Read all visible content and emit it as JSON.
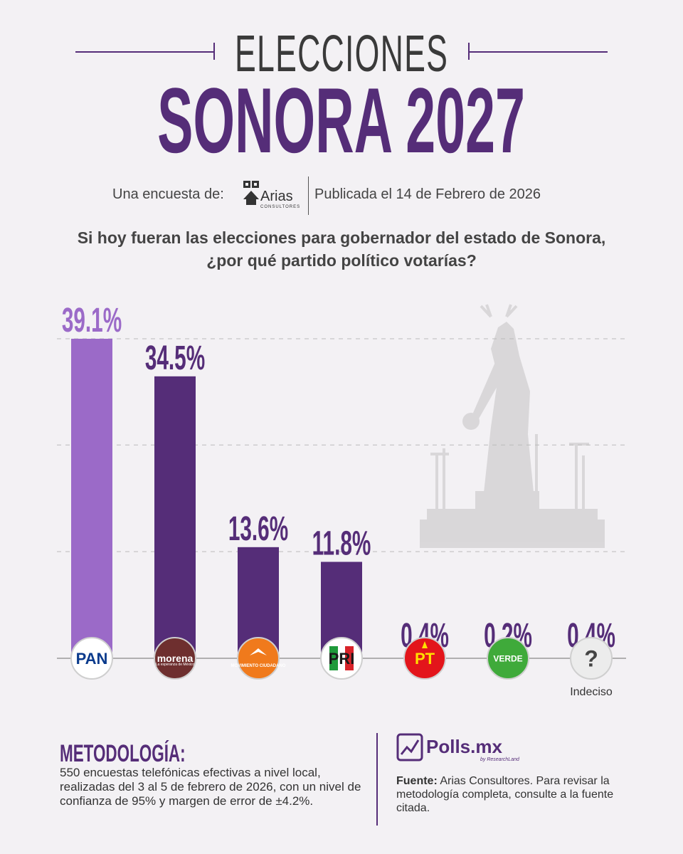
{
  "header": {
    "title_top": "ELECCIONES",
    "title_main": "SONORA 2027",
    "byline_label": "Una encuesta de:",
    "pollster_logo_name": "Arias",
    "pollster_logo_sub": "CONSULTORES",
    "published": "Publicada el 14 de Febrero de 2026"
  },
  "question": {
    "line1": "Si hoy fueran las elecciones para gobernador del estado de Sonora,",
    "line2": "¿por qué partido político votarías?"
  },
  "chart_data": {
    "type": "bar",
    "categories": [
      "PAN",
      "morena",
      "MOVIMIENTO CIUDADANO",
      "PRI",
      "PT",
      "VERDE",
      "Indeciso"
    ],
    "values": [
      39.1,
      34.5,
      13.6,
      11.8,
      0.4,
      0.2,
      0.4
    ],
    "value_labels": [
      "39.1%",
      "34.5%",
      "13.6%",
      "11.8%",
      "0.4%",
      "0.2%",
      "0.4%"
    ],
    "unit": "%",
    "ylim": [
      0,
      39.1
    ],
    "grid": true,
    "bar_colors": [
      "#9b6ac8",
      "#552d78",
      "#552d78",
      "#552d78",
      "#552d78",
      "#552d78",
      "#552d78"
    ],
    "logos": [
      {
        "text": "PAN",
        "bg": "#ffffff",
        "fg": "#0a3a8c",
        "sub": ""
      },
      {
        "text": "morena",
        "bg": "#6e2f2f",
        "fg": "#ffffff",
        "sub": "La esperanza de México"
      },
      {
        "text": "MOVIMIENTO CIUDADANO",
        "bg": "#f07a1c",
        "fg": "#ffffff",
        "sub": ""
      },
      {
        "text": "PRI",
        "bg": "#ffffff",
        "fg": "#1a1a1a",
        "sub": ""
      },
      {
        "text": "PT",
        "bg": "#e3151b",
        "fg": "#ffe000",
        "sub": ""
      },
      {
        "text": "VERDE",
        "bg": "#3faa3a",
        "fg": "#ffffff",
        "sub": ""
      },
      {
        "text": "?",
        "bg": "#ececec",
        "fg": "#444444",
        "sub": ""
      }
    ],
    "undecided_label": "Indeciso"
  },
  "methodology": {
    "title": "METODOLOGÍA:",
    "text": "550 encuestas telefónicas efectivas a nivel local, realizadas del 3 al 5 de febrero de 2026, con un nivel de confianza de 95% y margen de error de ±4.2%."
  },
  "source": {
    "brand": "Polls.mx",
    "brand_sub": "by ResearchLand",
    "label": "Fuente:",
    "text": " Arias Consultores. Para revisar la metodología completa, consulte a la fuente citada."
  },
  "colors": {
    "accent": "#552d78",
    "accent_light": "#9b6ac8"
  },
  "icons": {
    "statue": "statue-silhouette-icon"
  }
}
